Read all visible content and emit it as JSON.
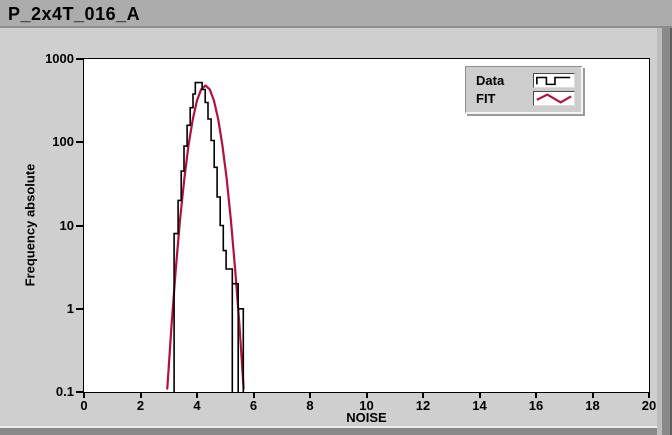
{
  "window": {
    "title": "P_2x4T_016_A"
  },
  "colors": {
    "titlebar_bg": "#acacac",
    "content_bg": "#cfcfcf",
    "frame_band": "#8a8a8a",
    "plot_bg": "#ffffff",
    "data_color": "#000000",
    "fit_color": "#b01240"
  },
  "legend": {
    "items": [
      {
        "label": "Data",
        "icon": "square-wave-icon",
        "color": "#000000"
      },
      {
        "label": "FIT",
        "icon": "zigzag-icon",
        "color": "#b01240"
      }
    ]
  },
  "chart_data": {
    "type": "line",
    "title": "P_2x4T_016_A",
    "xlabel": "NOISE",
    "ylabel": "Frequency absolute",
    "x_axis": {
      "min": 0,
      "max": 20,
      "tick_values": [
        0,
        2,
        4,
        6,
        8,
        10,
        12,
        14,
        16,
        18,
        20
      ],
      "tick_labels": [
        "0",
        "2",
        "4",
        "6",
        "8",
        "10",
        "12",
        "14",
        "16",
        "18",
        "20"
      ]
    },
    "y_axis": {
      "scale": "log",
      "min": 0.1,
      "max": 1000,
      "tick_values": [
        0.1,
        1,
        10,
        100,
        1000
      ],
      "tick_labels": [
        "0.1",
        "1",
        "10",
        "100",
        "1000"
      ]
    },
    "grid": false,
    "legend_position": "top-right-inside",
    "series": [
      {
        "name": "Data",
        "style": "histogram-steps",
        "color": "#000000",
        "points": [
          [
            3.19,
            0.1
          ],
          [
            3.19,
            8
          ],
          [
            3.33,
            8
          ],
          [
            3.33,
            20
          ],
          [
            3.44,
            20
          ],
          [
            3.44,
            45
          ],
          [
            3.54,
            45
          ],
          [
            3.54,
            90
          ],
          [
            3.65,
            90
          ],
          [
            3.65,
            160
          ],
          [
            3.76,
            160
          ],
          [
            3.76,
            260
          ],
          [
            3.86,
            260
          ],
          [
            3.86,
            380
          ],
          [
            3.94,
            380
          ],
          [
            3.94,
            520
          ],
          [
            4.18,
            520
          ],
          [
            4.18,
            430
          ],
          [
            4.29,
            430
          ],
          [
            4.29,
            300
          ],
          [
            4.39,
            300
          ],
          [
            4.39,
            190
          ],
          [
            4.5,
            190
          ],
          [
            4.5,
            105
          ],
          [
            4.61,
            105
          ],
          [
            4.61,
            50
          ],
          [
            4.71,
            50
          ],
          [
            4.71,
            22
          ],
          [
            4.82,
            22
          ],
          [
            4.82,
            10
          ],
          [
            4.93,
            10
          ],
          [
            4.93,
            5
          ],
          [
            5.03,
            5
          ],
          [
            5.03,
            3
          ],
          [
            5.25,
            3
          ],
          [
            5.25,
            0.1
          ],
          [
            5.25,
            2
          ],
          [
            5.46,
            2
          ],
          [
            5.46,
            0.1
          ],
          [
            5.46,
            1
          ],
          [
            5.64,
            1
          ],
          [
            5.64,
            0.1
          ]
        ]
      },
      {
        "name": "FIT",
        "style": "gaussian-fit-line",
        "color": "#b01240",
        "points": [
          [
            2.95,
            0.11
          ],
          [
            3.1,
            0.65
          ],
          [
            3.25,
            3.0
          ],
          [
            3.4,
            11.6
          ],
          [
            3.55,
            36.3
          ],
          [
            3.7,
            92
          ],
          [
            3.85,
            189
          ],
          [
            4.0,
            318
          ],
          [
            4.15,
            433
          ],
          [
            4.3,
            480
          ],
          [
            4.45,
            433
          ],
          [
            4.6,
            318
          ],
          [
            4.75,
            189
          ],
          [
            4.9,
            92
          ],
          [
            5.05,
            36.3
          ],
          [
            5.2,
            11.6
          ],
          [
            5.35,
            3.0
          ],
          [
            5.5,
            0.65
          ],
          [
            5.65,
            0.11
          ]
        ]
      }
    ]
  }
}
